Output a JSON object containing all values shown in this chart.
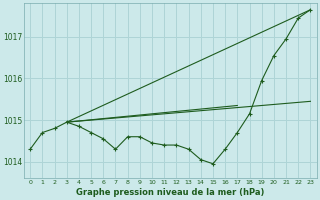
{
  "title": "Graphe pression niveau de la mer (hPa)",
  "background_color": "#cce9ea",
  "grid_color": "#aed4d6",
  "line_color": "#1e5c1e",
  "xlim": [
    -0.5,
    23.5
  ],
  "ylim": [
    1013.6,
    1017.8
  ],
  "yticks": [
    1014,
    1015,
    1016,
    1017
  ],
  "xtick_labels": [
    "0",
    "1",
    "2",
    "3",
    "4",
    "5",
    "6",
    "7",
    "8",
    "9",
    "10",
    "11",
    "12",
    "13",
    "14",
    "15",
    "16",
    "17",
    "18",
    "19",
    "20",
    "21",
    "22",
    "23"
  ],
  "xticks": [
    0,
    1,
    2,
    3,
    4,
    5,
    6,
    7,
    8,
    9,
    10,
    11,
    12,
    13,
    14,
    15,
    16,
    17,
    18,
    19,
    20,
    21,
    22,
    23
  ],
  "series_main": {
    "x": [
      0,
      1,
      2,
      3,
      4,
      5,
      6,
      7,
      8,
      9,
      10,
      11,
      12,
      13,
      14,
      15,
      16,
      17,
      18,
      19,
      20,
      21,
      22,
      23
    ],
    "y": [
      1014.3,
      1014.7,
      1014.8,
      1014.95,
      1014.85,
      1014.7,
      1014.55,
      1014.3,
      1014.6,
      1014.6,
      1014.45,
      1014.4,
      1014.4,
      1014.3,
      1014.05,
      1013.95,
      1014.3,
      1014.7,
      1015.15,
      1015.95,
      1016.55,
      1016.95,
      1017.45,
      1017.65
    ]
  },
  "series_lines": [
    {
      "x": [
        3,
        23
      ],
      "y": [
        1014.95,
        1017.65
      ],
      "marker": false
    },
    {
      "x": [
        3,
        23
      ],
      "y": [
        1014.95,
        1015.45
      ],
      "marker": false
    },
    {
      "x": [
        3,
        17
      ],
      "y": [
        1014.95,
        1015.35
      ],
      "marker": false
    }
  ],
  "figsize": [
    3.2,
    2.0
  ],
  "dpi": 100,
  "xlabel_fontsize": 6.0,
  "ytick_fontsize": 5.5,
  "xtick_fontsize": 4.5
}
